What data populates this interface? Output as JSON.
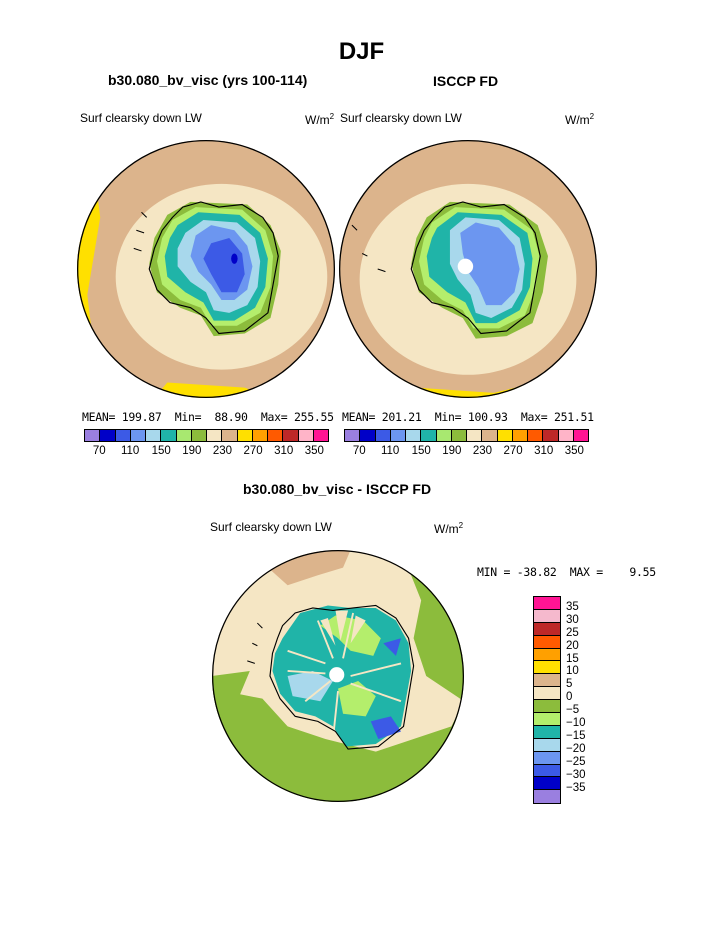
{
  "title": "DJF",
  "panels": {
    "model": {
      "title": "b30.080_bv_visc (yrs 100-114)",
      "variable": "Surf clearsky down LW",
      "units_base": "W/m",
      "units_exp": "2",
      "mean_label": "MEAN=",
      "mean": "199.87",
      "min_label": "Min=",
      "min": "88.90",
      "max_label": "Max=",
      "max": "255.55"
    },
    "obs": {
      "title": "ISCCP FD",
      "variable": "Surf clearsky down LW",
      "units_base": "W/m",
      "units_exp": "2",
      "mean_label": "MEAN=",
      "mean": "201.21",
      "min_label": "Min=",
      "min": "100.93",
      "max_label": "Max=",
      "max": "251.51"
    },
    "diff": {
      "title": "b30.080_bv_visc - ISCCP FD",
      "variable": "Surf clearsky down LW",
      "units_base": "W/m",
      "units_exp": "2",
      "stats": "MIN = -38.82  MAX =    9.55"
    }
  },
  "colorbar_top": {
    "colors": [
      "#9a7fe0",
      "#0000c8",
      "#3c5ae6",
      "#6c96f0",
      "#a8d8ec",
      "#20b4a8",
      "#a8e870",
      "#8cbc3c",
      "#f5e6c4",
      "#dcb48c",
      "#ffe000",
      "#ffa000",
      "#ff5a00",
      "#be2828",
      "#ffb4c8",
      "#ff1493"
    ],
    "labels": [
      "70",
      "110",
      "150",
      "190",
      "230",
      "270",
      "310",
      "350"
    ]
  },
  "colorbar_diff": {
    "colors": [
      "#ff1493",
      "#f5b9cd",
      "#be2828",
      "#ff5a00",
      "#ffa000",
      "#ffe000",
      "#dcb48c",
      "#f5e6c4",
      "#8cbc3c",
      "#b4ee6c",
      "#20b4a8",
      "#a8d8ec",
      "#6c96f0",
      "#3c5ae6",
      "#0000c8",
      "#9a7fe0"
    ],
    "labels": [
      "35",
      "30",
      "25",
      "20",
      "15",
      "10",
      "5",
      "0",
      "−5",
      "−10",
      "−15",
      "−20",
      "−25",
      "−30",
      "−35"
    ]
  }
}
